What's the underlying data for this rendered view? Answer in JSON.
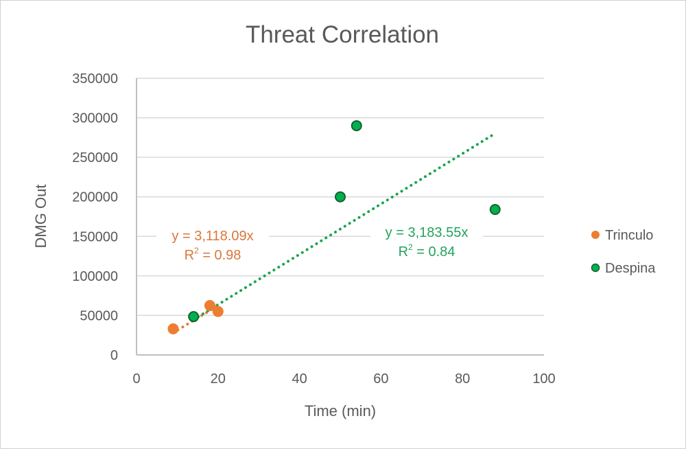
{
  "chart_data": {
    "type": "scatter",
    "title": "Threat Correlation",
    "xlabel": "Time (min)",
    "ylabel": "DMG Out",
    "xlim": [
      0,
      100
    ],
    "ylim": [
      0,
      350000
    ],
    "x_ticks": [
      "0",
      "20",
      "40",
      "60",
      "80",
      "100"
    ],
    "y_ticks": [
      "0",
      "50000",
      "100000",
      "150000",
      "200000",
      "250000",
      "300000",
      "350000"
    ],
    "grid": true,
    "legend_position": "right",
    "series": [
      {
        "name": "Trinculo",
        "color": "#ED7D31",
        "points": [
          [
            9,
            33000
          ],
          [
            18,
            62500
          ],
          [
            20,
            55000
          ]
        ],
        "trendline": {
          "type": "linear-through-origin",
          "slope": 3118.09,
          "x_range": [
            9,
            20
          ],
          "equation": "y = 3,118.09x",
          "r2_label": "R",
          "r2_sup": "2",
          "r2_value": " = 0.98"
        }
      },
      {
        "name": "Despina",
        "color": "#00B050",
        "points": [
          [
            14,
            48500
          ],
          [
            50,
            200000
          ],
          [
            54,
            290000
          ],
          [
            88,
            184000
          ]
        ],
        "trendline": {
          "type": "linear-through-origin",
          "slope": 3183.55,
          "x_range": [
            14,
            88
          ],
          "equation": "y = 3,183.55x",
          "r2_label": "R",
          "r2_sup": "2",
          "r2_value": " = 0.84"
        }
      }
    ]
  }
}
